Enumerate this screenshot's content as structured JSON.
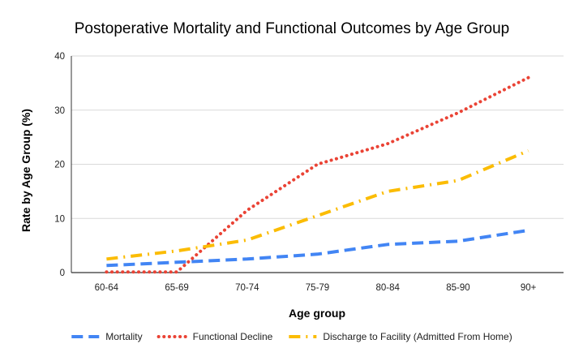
{
  "chart_data": {
    "type": "line",
    "title": "Postoperative Mortality and Functional Outcomes by Age Group",
    "xlabel": "Age group",
    "ylabel": "Rate by Age Group (%)",
    "categories": [
      "60-64",
      "65-69",
      "70-74",
      "75-79",
      "80-84",
      "85-90",
      "90+"
    ],
    "ylim": [
      0,
      40
    ],
    "yticks": [
      "0",
      "10",
      "20",
      "30",
      "40"
    ],
    "grid": true,
    "legend_position": "bottom",
    "series": [
      {
        "name": "Mortality",
        "color": "#4285F4",
        "dash": "dashed",
        "values": [
          1.3,
          1.9,
          2.5,
          3.4,
          5.2,
          5.8,
          7.8
        ]
      },
      {
        "name": "Functional Decline",
        "color": "#EA4335",
        "dash": "dotted",
        "values": [
          0.1,
          0.1,
          11.5,
          20.0,
          23.8,
          29.5,
          36.0
        ]
      },
      {
        "name": "Discharge to Facility (Admitted From Home)",
        "color": "#FBBC04",
        "dash": "dashdot",
        "values": [
          2.5,
          4.0,
          6.0,
          10.5,
          15.0,
          17.0,
          22.5
        ]
      }
    ]
  }
}
